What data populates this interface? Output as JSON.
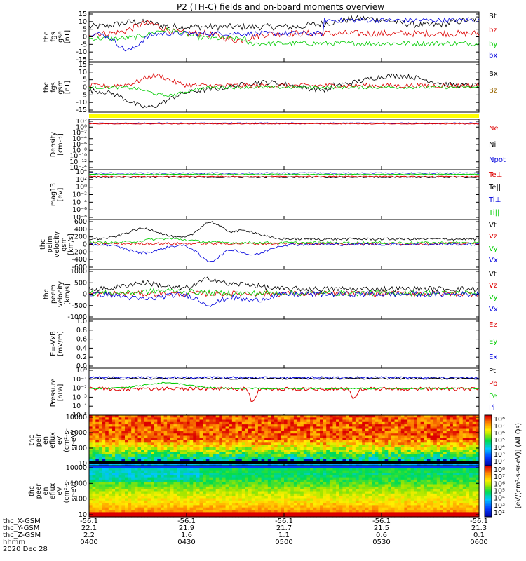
{
  "title": "P2 (TH-C) fields and on-board moments overview",
  "chart_data": [
    {
      "type": "line",
      "id": "fgs_gse",
      "ylabel": [
        "thc",
        "fgs",
        "gse",
        "[nT]"
      ],
      "yticks": [
        "15",
        "10",
        "5",
        "0",
        "-5",
        "-10",
        "-15"
      ],
      "ylim": [
        -15,
        15
      ],
      "legend": [
        {
          "name": "Bt",
          "color": "#000000"
        },
        {
          "name": "bz",
          "color": "#dd0000"
        },
        {
          "name": "by",
          "color": "#00cc00"
        },
        {
          "name": "bx",
          "color": "#0000dd"
        }
      ]
    },
    {
      "type": "line",
      "id": "fgs_gsm",
      "ylabel": [
        "thc",
        "fgs",
        "gsm",
        "[nT]"
      ],
      "yticks": [
        "15",
        "10",
        "5",
        "0",
        "-5",
        "-10",
        "-15"
      ],
      "ylim": [
        -15,
        15
      ],
      "legend": [
        {
          "name": "Bx",
          "color": "#000000"
        },
        {
          "name": "Bz",
          "color": "#996600"
        }
      ]
    },
    {
      "type": "line",
      "id": "density",
      "log": true,
      "ylabel": [
        "Density",
        "[cm-3]"
      ],
      "yticks": [
        "10²",
        "10⁰",
        "10⁻²",
        "10⁻⁴",
        "10⁻⁶",
        "10⁻⁸",
        "10⁻¹⁰",
        "10⁻¹²",
        "10⁻¹⁴"
      ],
      "legend": [
        {
          "name": "Ne",
          "color": "#dd0000"
        },
        {
          "name": "Ni",
          "color": "#000000"
        },
        {
          "name": "Npot",
          "color": "#0000dd"
        }
      ]
    },
    {
      "type": "line",
      "id": "temperature",
      "log": true,
      "ylabel": [
        "mag13",
        "[eV]"
      ],
      "yticks": [
        "10⁴",
        "10²",
        "10⁰",
        "10⁻²",
        "10⁻⁴",
        "10⁻⁶",
        "10⁻⁸"
      ],
      "legend": [
        {
          "name": "Te⊥",
          "color": "#dd0000"
        },
        {
          "name": "Te||",
          "color": "#000000"
        },
        {
          "name": "Ti⊥",
          "color": "#0000dd"
        },
        {
          "name": "Ti||",
          "color": "#00cc00"
        }
      ]
    },
    {
      "type": "line",
      "id": "peim_velocity",
      "ylabel": [
        "thc",
        "peim",
        "velocity",
        "gsm",
        "[km/s]"
      ],
      "yticks": [
        "600",
        "400",
        "200",
        "0",
        "-200",
        "-400",
        "-600"
      ],
      "ylim": [
        -600,
        600
      ],
      "legend": [
        {
          "name": "Vt",
          "color": "#000000"
        },
        {
          "name": "Vz",
          "color": "#dd0000"
        },
        {
          "name": "Vy",
          "color": "#00cc00"
        },
        {
          "name": "Vx",
          "color": "#0000dd"
        }
      ]
    },
    {
      "type": "line",
      "id": "peem_velocity",
      "ylabel": [
        "thc",
        "peem",
        "velocity",
        "[km/s]"
      ],
      "yticks": [
        "1000",
        "500",
        "0",
        "-500",
        "-1000"
      ],
      "ylim": [
        -1000,
        1000
      ],
      "legend": [
        {
          "name": "Vt",
          "color": "#000000"
        },
        {
          "name": "Vz",
          "color": "#dd0000"
        },
        {
          "name": "Vy",
          "color": "#00cc00"
        },
        {
          "name": "Vx",
          "color": "#0000dd"
        }
      ]
    },
    {
      "type": "line",
      "id": "efield",
      "ylabel": [
        "E=-VxB",
        "[mV/m]"
      ],
      "yticks": [
        "1.0",
        "0.8",
        "0.6",
        "0.4",
        "0.2",
        "0.0"
      ],
      "ylim": [
        0,
        1
      ],
      "legend": [
        {
          "name": "Ez",
          "color": "#dd0000"
        },
        {
          "name": "Ey",
          "color": "#00cc00"
        },
        {
          "name": "Ex",
          "color": "#0000dd"
        }
      ]
    },
    {
      "type": "line",
      "id": "pressure",
      "log": true,
      "ylabel": [
        "Pressure",
        "[nPa]"
      ],
      "yticks": [
        "10⁰",
        "10⁻¹",
        "10⁻²",
        "10⁻³",
        "10⁻⁴",
        "10⁻⁵"
      ],
      "legend": [
        {
          "name": "Pt",
          "color": "#000000"
        },
        {
          "name": "Pb",
          "color": "#dd0000"
        },
        {
          "name": "Pe",
          "color": "#00cc00"
        },
        {
          "name": "Pi",
          "color": "#0000dd"
        }
      ]
    },
    {
      "type": "heatmap",
      "id": "peir_eflux",
      "ylabel": [
        "thc",
        "peir",
        "en",
        "eflux",
        "eV",
        "(cm²-s-",
        "sr-eV)"
      ],
      "yticks": [
        "10000",
        "1000",
        "100",
        "10"
      ],
      "colorbar_ticks": [
        "10⁸",
        "10⁷",
        "10⁶",
        "10⁵",
        "10⁴",
        "10³",
        "10²"
      ],
      "colorbar_label": "[eV/(cm²-s-sr-eV)] (All Qs)"
    },
    {
      "type": "heatmap",
      "id": "peer_eflux",
      "ylabel": [
        "thc",
        "peer",
        "en",
        "eflux",
        "eV",
        "(cm²-s-",
        "sr-eV)"
      ],
      "yticks": [
        "10000",
        "1000",
        "100",
        "10"
      ],
      "colorbar_ticks": [
        "10⁸",
        "10⁷",
        "10⁶",
        "10⁵",
        "10⁴",
        "10³",
        "10²"
      ]
    }
  ],
  "x_axis": {
    "row_labels": [
      "thc_X-GSM",
      "thc_Y-GSM",
      "thc_Z-GSM",
      "hhmm",
      "2020 Dec 28"
    ],
    "ticks": [
      {
        "x_gsm": "-56.1",
        "y_gsm": "22.1",
        "z_gsm": "2.2",
        "hhmm": "0400"
      },
      {
        "x_gsm": "-56.1",
        "y_gsm": "21.9",
        "z_gsm": "1.6",
        "hhmm": "0430"
      },
      {
        "x_gsm": "-56.1",
        "y_gsm": "21.7",
        "z_gsm": "1.1",
        "hhmm": "0500"
      },
      {
        "x_gsm": "-56.1",
        "y_gsm": "21.5",
        "z_gsm": "0.6",
        "hhmm": "0530"
      },
      {
        "x_gsm": "-56.1",
        "y_gsm": "21.3",
        "z_gsm": "0.1",
        "hhmm": "0600"
      }
    ]
  },
  "colors": {
    "flag_bar": "#ffff00"
  }
}
